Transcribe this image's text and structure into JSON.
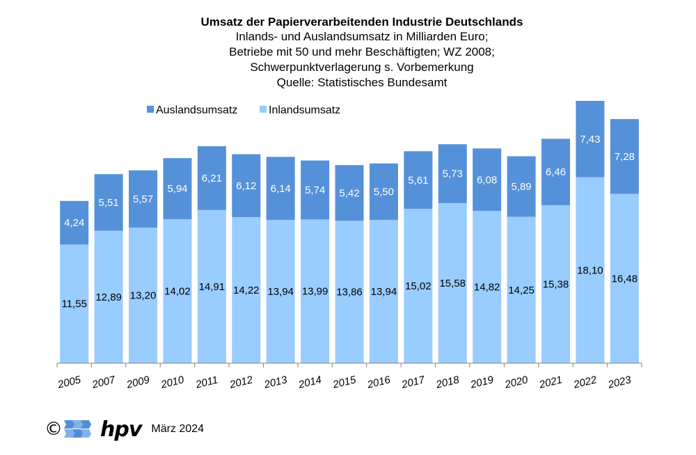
{
  "chart_data": {
    "type": "bar",
    "stacked": true,
    "title": "Umsatz der Papierverarbeitenden Industrie Deutschlands",
    "subtitle": [
      "Inlands- und Auslandsumsatz in Milliarden Euro;",
      "Betriebe mit 50 und mehr Beschäftigten; WZ 2008;",
      "Schwerpunktverlagerung s. Vorbemerkung",
      "Quelle: Statistisches Bundesamt"
    ],
    "categories": [
      "2005",
      "2007",
      "2009",
      "2010",
      "2011",
      "2012",
      "2013",
      "2014",
      "2015",
      "2016",
      "2017",
      "2018",
      "2019",
      "2020",
      "2021",
      "2022",
      "2023"
    ],
    "series": [
      {
        "name": "Inlandsumsatz",
        "color": "#99ccff",
        "values": [
          11.55,
          12.89,
          13.2,
          14.02,
          14.91,
          14.22,
          13.94,
          13.99,
          13.86,
          13.94,
          15.02,
          15.58,
          14.82,
          14.25,
          15.38,
          18.1,
          16.48
        ],
        "labels": [
          "11,55",
          "12,89",
          "13,20",
          "14,02",
          "14,91",
          "14,22",
          "13,94",
          "13,99",
          "13,86",
          "13,94",
          "15,02",
          "15,58",
          "14,82",
          "14,25",
          "15,38",
          "18,10",
          "16,48"
        ]
      },
      {
        "name": "Auslandsumsatz",
        "color": "#5591d8",
        "values": [
          4.24,
          5.51,
          5.57,
          5.94,
          6.21,
          6.12,
          6.14,
          5.74,
          5.42,
          5.5,
          5.61,
          5.73,
          6.08,
          5.89,
          6.46,
          7.43,
          7.28
        ],
        "labels": [
          "4,24",
          "5,51",
          "5,57",
          "5,94",
          "6,21",
          "6,12",
          "6,14",
          "5,74",
          "5,42",
          "5,50",
          "5,61",
          "5,73",
          "6,08",
          "5,89",
          "6,46",
          "7,43",
          "7,28"
        ]
      }
    ],
    "legend_order": [
      "Auslandsumsatz",
      "Inlandsumsatz"
    ],
    "legend_position": "top-left",
    "ylim": [
      0,
      25.53
    ],
    "grid": false
  },
  "footer": {
    "copyright": "©",
    "brand": "hpv",
    "date": "März 2024"
  }
}
